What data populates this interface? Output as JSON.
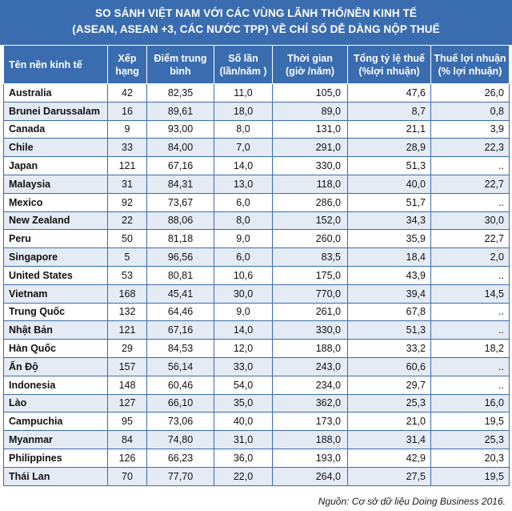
{
  "title": {
    "line1": "SO SÁNH VIỆT NAM VỚI CÁC VÙNG LÃNH THỔ/NỀN KINH TẾ",
    "line2": "(ASEAN, ASEAN +3, CÁC NƯỚC TPP) VỀ CHỈ SỐ DỄ DÀNG NỘP THUẾ"
  },
  "headers": [
    "Tên nền kinh tế",
    "Xếp\nhạng",
    "Điểm trung\nbình",
    "Số lần\n(lần/năm )",
    "Thời gian\n(giờ /năm)",
    "Tổng tỷ lệ thuế\n(%lợi  nhuận)",
    "Thuế lợi nhuận\n(% lợi nhuận)"
  ],
  "rows": [
    {
      "name": "Australia",
      "rank": "42",
      "score": "82,35",
      "times": "11,0",
      "time": "105,0",
      "total_rate": "47,6",
      "profit_tax": "26,0"
    },
    {
      "name": "Brunei Darussalam",
      "rank": "16",
      "score": "89,61",
      "times": "18,0",
      "time": "89,0",
      "total_rate": "8,7",
      "profit_tax": "0,8"
    },
    {
      "name": "Canada",
      "rank": "9",
      "score": "93,00",
      "times": "8,0",
      "time": "131,0",
      "total_rate": "21,1",
      "profit_tax": "3,9"
    },
    {
      "name": "Chile",
      "rank": "33",
      "score": "84,00",
      "times": "7,0",
      "time": "291,0",
      "total_rate": "28,9",
      "profit_tax": "22,3"
    },
    {
      "name": "Japan",
      "rank": "121",
      "score": "67,16",
      "times": "14,0",
      "time": "330,0",
      "total_rate": "51,3",
      "profit_tax": ".."
    },
    {
      "name": "Malaysia",
      "rank": "31",
      "score": "84,31",
      "times": "13,0",
      "time": "118,0",
      "total_rate": "40,0",
      "profit_tax": "22,7"
    },
    {
      "name": "Mexico",
      "rank": "92",
      "score": "73,67",
      "times": "6,0",
      "time": "286,0",
      "total_rate": "51,7",
      "profit_tax": ".."
    },
    {
      "name": "New Zealand",
      "rank": "22",
      "score": "88,06",
      "times": "8,0",
      "time": "152,0",
      "total_rate": "34,3",
      "profit_tax": "30,0"
    },
    {
      "name": "Peru",
      "rank": "50",
      "score": "81,18",
      "times": "9,0",
      "time": "260,0",
      "total_rate": "35,9",
      "profit_tax": "22,7"
    },
    {
      "name": "Singapore",
      "rank": "5",
      "score": "96,56",
      "times": "6,0",
      "time": "83,5",
      "total_rate": "18,4",
      "profit_tax": "2,0"
    },
    {
      "name": "United States",
      "rank": "53",
      "score": "80,81",
      "times": "10,6",
      "time": "175,0",
      "total_rate": "43,9",
      "profit_tax": ".."
    },
    {
      "name": "Vietnam",
      "rank": "168",
      "score": "45,41",
      "times": "30,0",
      "time": "770,0",
      "total_rate": "39,4",
      "profit_tax": "14,5"
    },
    {
      "name": "Trung Quốc",
      "rank": "132",
      "score": "64,46",
      "times": "9,0",
      "time": "261,0",
      "total_rate": "67,8",
      "profit_tax": ".."
    },
    {
      "name": "Nhật Bản",
      "rank": "121",
      "score": "67,16",
      "times": "14,0",
      "time": "330,0",
      "total_rate": "51,3",
      "profit_tax": ".."
    },
    {
      "name": "Hàn Quốc",
      "rank": "29",
      "score": "84,53",
      "times": "12,0",
      "time": "188,0",
      "total_rate": "33,2",
      "profit_tax": "18,2"
    },
    {
      "name": "Ấn Độ",
      "rank": "157",
      "score": "56,14",
      "times": "33,0",
      "time": "243,0",
      "total_rate": "60,6",
      "profit_tax": ".."
    },
    {
      "name": "Indonesia",
      "rank": "148",
      "score": "60,46",
      "times": "54,0",
      "time": "234,0",
      "total_rate": "29,7",
      "profit_tax": ".."
    },
    {
      "name": "Lào",
      "rank": "127",
      "score": "66,10",
      "times": "35,0",
      "time": "362,0",
      "total_rate": "25,3",
      "profit_tax": "16,0"
    },
    {
      "name": "Campuchia",
      "rank": "95",
      "score": "73,06",
      "times": "40,0",
      "time": "173,0",
      "total_rate": "21,0",
      "profit_tax": "19,5"
    },
    {
      "name": "Myanmar",
      "rank": "84",
      "score": "74,80",
      "times": "31,0",
      "time": "188,0",
      "total_rate": "31,4",
      "profit_tax": "25,3"
    },
    {
      "name": "Philippines",
      "rank": "126",
      "score": "66,23",
      "times": "36,0",
      "time": "193,0",
      "total_rate": "42,9",
      "profit_tax": "20,3"
    },
    {
      "name": "Thái Lan",
      "rank": "70",
      "score": "77,70",
      "times": "22,0",
      "time": "264,0",
      "total_rate": "27,5",
      "profit_tax": "19,5"
    }
  ],
  "source": "Nguồn: Cơ sở dữ liệu Doing Business 2016.",
  "colors": {
    "header_bg": "#3a6cb0",
    "stripe": "#e4ebf5",
    "border": "#3a6cb0"
  }
}
